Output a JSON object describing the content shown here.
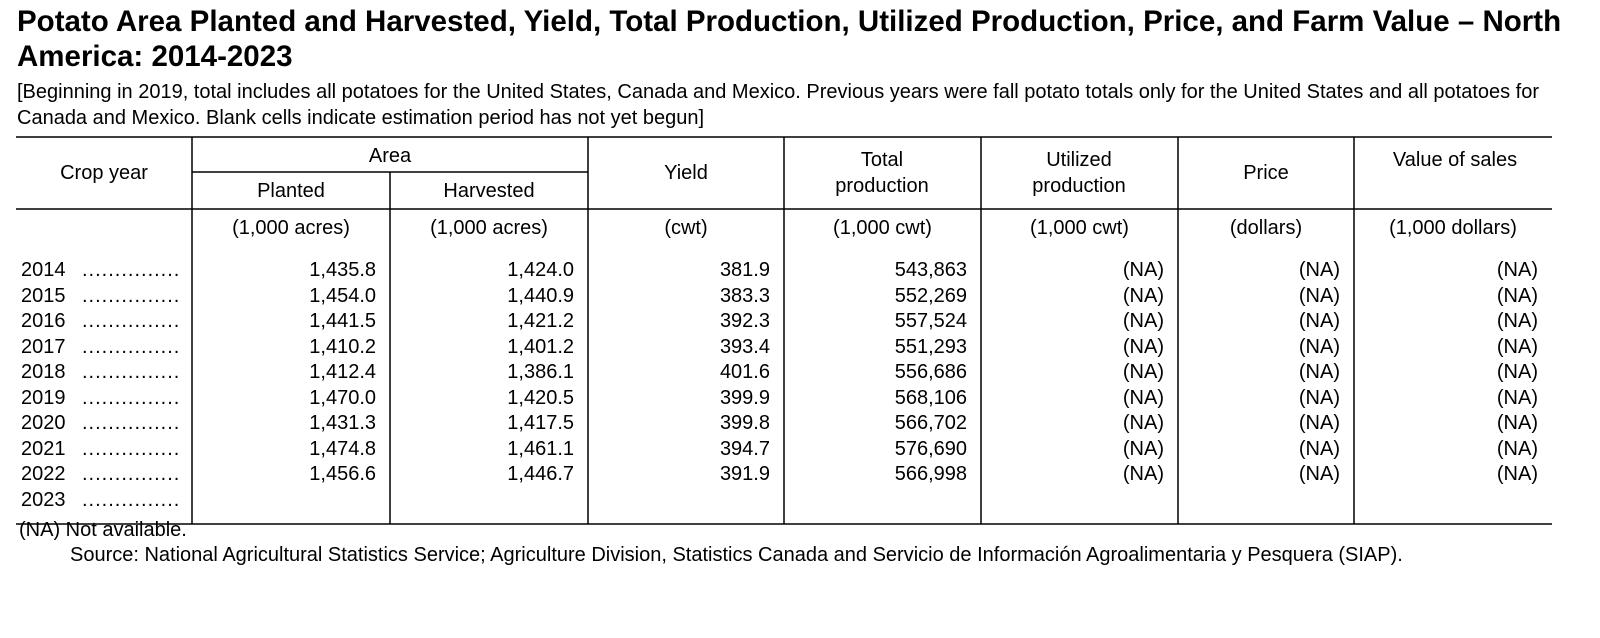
{
  "title": "Potato Area Planted and Harvested, Yield, Total Production, Utilized Production, Price, and Farm Value – North America: 2014-2023",
  "note": "[Beginning in 2019, total includes all potatoes for the United States, Canada and Mexico. Previous years were fall potato totals only for the United States and all potatoes for Canada and Mexico. Blank cells indicate estimation period has not yet begun]",
  "headers": {
    "crop_year": "Crop year",
    "area": "Area",
    "planted": "Planted",
    "harvested": "Harvested",
    "yield": "Yield",
    "total_production": "Total production",
    "utilized_production": "Utilized production",
    "price": "Price",
    "value_of_sales": "Value of sales"
  },
  "units": {
    "planted": "(1,000 acres)",
    "harvested": "(1,000 acres)",
    "yield": "(cwt)",
    "total_production": "(1,000 cwt)",
    "utilized_production": "(1,000 cwt)",
    "price": "(dollars)",
    "value_of_sales": "(1,000 dollars)"
  },
  "leader_dots": "...............",
  "rows": [
    {
      "year": "2014",
      "planted": "1,435.8",
      "harvested": "1,424.0",
      "yield": "381.9",
      "total": "543,863",
      "utilized": "(NA)",
      "price": "(NA)",
      "value": "(NA)"
    },
    {
      "year": "2015",
      "planted": "1,454.0",
      "harvested": "1,440.9",
      "yield": "383.3",
      "total": "552,269",
      "utilized": "(NA)",
      "price": "(NA)",
      "value": "(NA)"
    },
    {
      "year": "2016",
      "planted": "1,441.5",
      "harvested": "1,421.2",
      "yield": "392.3",
      "total": "557,524",
      "utilized": "(NA)",
      "price": "(NA)",
      "value": "(NA)"
    },
    {
      "year": "2017",
      "planted": "1,410.2",
      "harvested": "1,401.2",
      "yield": "393.4",
      "total": "551,293",
      "utilized": "(NA)",
      "price": "(NA)",
      "value": "(NA)"
    },
    {
      "year": "2018",
      "planted": "1,412.4",
      "harvested": "1,386.1",
      "yield": "401.6",
      "total": "556,686",
      "utilized": "(NA)",
      "price": "(NA)",
      "value": "(NA)"
    },
    {
      "year": "2019",
      "planted": "1,470.0",
      "harvested": "1,420.5",
      "yield": "399.9",
      "total": "568,106",
      "utilized": "(NA)",
      "price": "(NA)",
      "value": "(NA)"
    },
    {
      "year": "2020",
      "planted": "1,431.3",
      "harvested": "1,417.5",
      "yield": "399.8",
      "total": "566,702",
      "utilized": "(NA)",
      "price": "(NA)",
      "value": "(NA)"
    },
    {
      "year": "2021",
      "planted": "1,474.8",
      "harvested": "1,461.1",
      "yield": "394.7",
      "total": "576,690",
      "utilized": "(NA)",
      "price": "(NA)",
      "value": "(NA)"
    },
    {
      "year": "2022",
      "planted": "1,456.6",
      "harvested": "1,446.7",
      "yield": "391.9",
      "total": "566,998",
      "utilized": "(NA)",
      "price": "(NA)",
      "value": "(NA)"
    },
    {
      "year": "2023",
      "planted": "",
      "harvested": "",
      "yield": "",
      "total": "",
      "utilized": "",
      "price": "",
      "value": ""
    }
  ],
  "footnote": "(NA) Not available.",
  "source": "Source: National Agricultural Statistics Service; Agriculture Division, Statistics Canada and Servicio de Información Agroalimentaria y Pesquera (SIAP)."
}
